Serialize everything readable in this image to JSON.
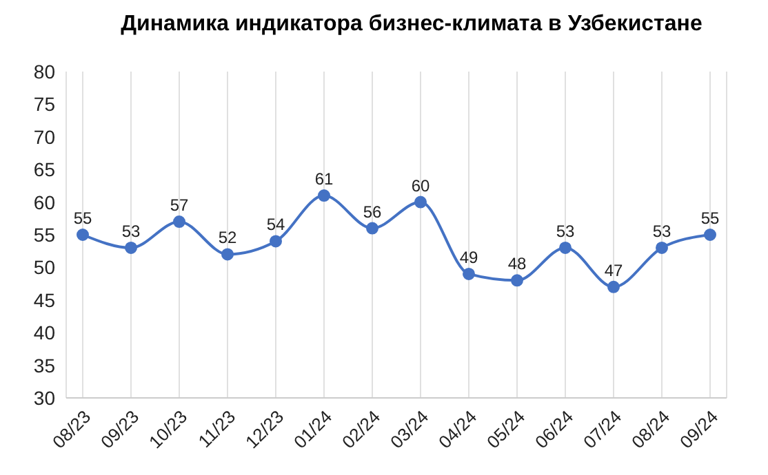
{
  "chart_data": {
    "type": "line",
    "title": "Динамика индикатора бизнес-климата в Узбекистане",
    "categories": [
      "08/23",
      "09/23",
      "10/23",
      "11/23",
      "12/23",
      "01/24",
      "02/24",
      "03/24",
      "04/24",
      "05/24",
      "06/24",
      "07/24",
      "08/24",
      "09/24"
    ],
    "series": [
      {
        "color": "#4472c4",
        "values": [
          55,
          53,
          57,
          52,
          54,
          61,
          56,
          60,
          49,
          48,
          53,
          47,
          53,
          55
        ]
      }
    ],
    "ylim": [
      30,
      80
    ],
    "yticks": [
      30,
      35,
      40,
      45,
      50,
      55,
      60,
      65,
      70,
      75,
      80
    ],
    "grid": "x",
    "marker": "circle",
    "data_labels": true,
    "legend": false
  }
}
